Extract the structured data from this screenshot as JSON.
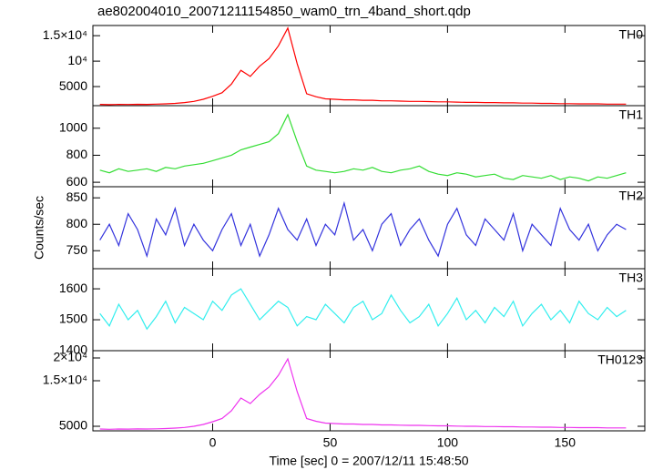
{
  "chart_data": [
    {
      "type": "line",
      "title": "ae802004010_20071211154850_wam0_trn_4band_short.qdp",
      "label": "TH0",
      "color": "#ff0000",
      "x": [
        -48,
        -44,
        -40,
        -36,
        -32,
        -28,
        -24,
        -20,
        -16,
        -12,
        -8,
        -4,
        0,
        4,
        8,
        12,
        16,
        20,
        24,
        28,
        32,
        36,
        40,
        44,
        48,
        52,
        56,
        60,
        64,
        68,
        72,
        76,
        80,
        84,
        88,
        92,
        96,
        100,
        104,
        108,
        112,
        116,
        120,
        124,
        128,
        132,
        136,
        140,
        144,
        148,
        152,
        156,
        160,
        164,
        168,
        172,
        176
      ],
      "values": [
        1500,
        1450,
        1500,
        1480,
        1520,
        1500,
        1550,
        1600,
        1700,
        1850,
        2100,
        2500,
        3100,
        3800,
        5500,
        8200,
        7000,
        9000,
        10500,
        13000,
        16500,
        9500,
        3600,
        3000,
        2600,
        2500,
        2400,
        2400,
        2300,
        2300,
        2200,
        2200,
        2150,
        2100,
        2100,
        2050,
        2000,
        2000,
        1950,
        1900,
        1900,
        1850,
        1850,
        1800,
        1800,
        1750,
        1750,
        1700,
        1700,
        1650,
        1650,
        1600,
        1600,
        1600,
        1550,
        1550,
        1550
      ],
      "ylim": [
        1250,
        17000
      ],
      "yticks": [
        5000,
        {
          "value": 10000,
          "label": "10⁴"
        },
        {
          "value": 15000,
          "label": "1.5×10⁴"
        }
      ]
    },
    {
      "type": "line",
      "label": "TH1",
      "color": "#33dd33",
      "x": [
        -48,
        -44,
        -40,
        -36,
        -32,
        -28,
        -24,
        -20,
        -16,
        -12,
        -8,
        -4,
        0,
        4,
        8,
        12,
        16,
        20,
        24,
        28,
        32,
        36,
        40,
        44,
        48,
        52,
        56,
        60,
        64,
        68,
        72,
        76,
        80,
        84,
        88,
        92,
        96,
        100,
        104,
        108,
        112,
        116,
        120,
        124,
        128,
        132,
        136,
        140,
        144,
        148,
        152,
        156,
        160,
        164,
        168,
        172,
        176
      ],
      "values": [
        690,
        670,
        700,
        680,
        690,
        700,
        680,
        710,
        700,
        720,
        730,
        740,
        760,
        780,
        800,
        840,
        860,
        880,
        900,
        960,
        1100,
        900,
        720,
        690,
        680,
        670,
        680,
        700,
        690,
        710,
        680,
        670,
        690,
        700,
        720,
        680,
        660,
        650,
        670,
        660,
        640,
        650,
        660,
        630,
        620,
        650,
        640,
        630,
        650,
        620,
        640,
        630,
        610,
        640,
        630,
        650,
        670
      ],
      "ylim": [
        567,
        1167
      ],
      "yticks": [
        600,
        800,
        1000
      ]
    },
    {
      "type": "line",
      "label": "TH2",
      "color": "#3333dd",
      "ylabel": "Counts/sec",
      "x": [
        -48,
        -44,
        -40,
        -36,
        -32,
        -28,
        -24,
        -20,
        -16,
        -12,
        -8,
        -4,
        0,
        4,
        8,
        12,
        16,
        20,
        24,
        28,
        32,
        36,
        40,
        44,
        48,
        52,
        56,
        60,
        64,
        68,
        72,
        76,
        80,
        84,
        88,
        92,
        96,
        100,
        104,
        108,
        112,
        116,
        120,
        124,
        128,
        132,
        136,
        140,
        144,
        148,
        152,
        156,
        160,
        164,
        168,
        172,
        176
      ],
      "values": [
        770,
        800,
        760,
        820,
        790,
        740,
        810,
        780,
        830,
        760,
        800,
        770,
        750,
        790,
        820,
        760,
        800,
        740,
        780,
        830,
        790,
        770,
        810,
        760,
        800,
        780,
        840,
        770,
        790,
        750,
        800,
        820,
        760,
        790,
        810,
        770,
        740,
        800,
        830,
        780,
        760,
        810,
        790,
        770,
        820,
        750,
        800,
        780,
        760,
        830,
        790,
        770,
        800,
        750,
        780,
        800,
        790
      ],
      "ylim": [
        716,
        871
      ],
      "yticks": [
        750,
        800,
        850
      ]
    },
    {
      "type": "line",
      "label": "TH3",
      "color": "#33eeee",
      "x": [
        -48,
        -44,
        -40,
        -36,
        -32,
        -28,
        -24,
        -20,
        -16,
        -12,
        -8,
        -4,
        0,
        4,
        8,
        12,
        16,
        20,
        24,
        28,
        32,
        36,
        40,
        44,
        48,
        52,
        56,
        60,
        64,
        68,
        72,
        76,
        80,
        84,
        88,
        92,
        96,
        100,
        104,
        108,
        112,
        116,
        120,
        124,
        128,
        132,
        136,
        140,
        144,
        148,
        152,
        156,
        160,
        164,
        168,
        172,
        176
      ],
      "values": [
        1520,
        1480,
        1550,
        1500,
        1530,
        1470,
        1510,
        1560,
        1490,
        1540,
        1520,
        1500,
        1560,
        1530,
        1580,
        1600,
        1550,
        1500,
        1530,
        1560,
        1540,
        1480,
        1510,
        1500,
        1550,
        1520,
        1490,
        1540,
        1560,
        1500,
        1520,
        1580,
        1530,
        1490,
        1510,
        1550,
        1480,
        1520,
        1570,
        1500,
        1530,
        1490,
        1540,
        1510,
        1560,
        1480,
        1520,
        1550,
        1500,
        1530,
        1490,
        1560,
        1520,
        1500,
        1540,
        1510,
        1530
      ],
      "ylim": [
        1400,
        1665
      ],
      "yticks": [
        1400,
        1500,
        1600
      ]
    },
    {
      "type": "line",
      "label": "TH0123",
      "color": "#ee33ee",
      "xlabel": "Time [sec] 0 = 2007/12/11 15:48:50",
      "x": [
        -48,
        -44,
        -40,
        -36,
        -32,
        -28,
        -24,
        -20,
        -16,
        -12,
        -8,
        -4,
        0,
        4,
        8,
        12,
        16,
        20,
        24,
        28,
        32,
        36,
        40,
        44,
        48,
        52,
        56,
        60,
        64,
        68,
        72,
        76,
        80,
        84,
        88,
        92,
        96,
        100,
        104,
        108,
        112,
        116,
        120,
        124,
        128,
        132,
        136,
        140,
        144,
        148,
        152,
        156,
        160,
        164,
        168,
        172,
        176
      ],
      "values": [
        4400,
        4350,
        4400,
        4380,
        4420,
        4400,
        4450,
        4500,
        4600,
        4750,
        5000,
        5400,
        6000,
        6700,
        8400,
        11200,
        10000,
        12000,
        13600,
        16200,
        19800,
        12600,
        6700,
        6100,
        5700,
        5600,
        5500,
        5500,
        5400,
        5400,
        5300,
        5300,
        5250,
        5200,
        5200,
        5150,
        5100,
        5100,
        5050,
        5000,
        5000,
        4950,
        4950,
        4900,
        4900,
        4850,
        4850,
        4800,
        4800,
        4750,
        4750,
        4700,
        4700,
        4700,
        4650,
        4650,
        4650
      ],
      "ylim": [
        4000,
        21600
      ],
      "yticks": [
        5000,
        {
          "value": 15000,
          "label": "1.5×10⁴"
        },
        {
          "value": 20000,
          "label": "2×10⁴"
        }
      ],
      "xlim": [
        -51,
        184
      ],
      "xticks": [
        0,
        50,
        100,
        150
      ]
    }
  ]
}
